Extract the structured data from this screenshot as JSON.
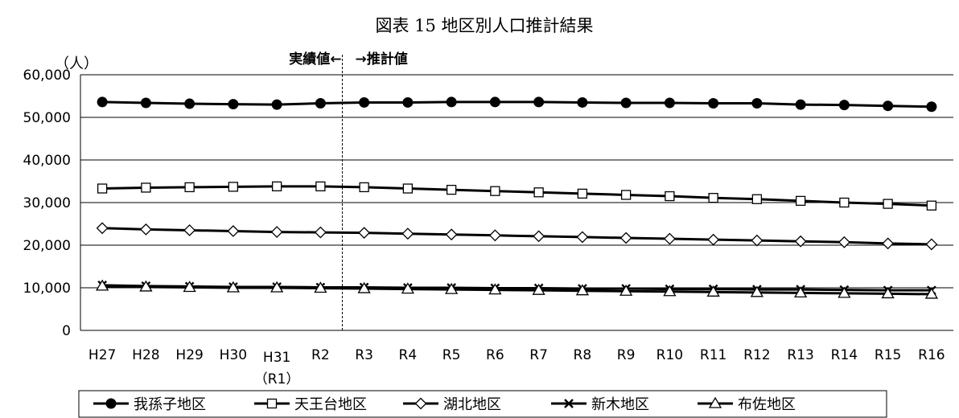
{
  "chart_data": {
    "type": "line",
    "title": "図表 15 地区別人口推計結果",
    "ylabel": "（人）",
    "xlabel": "",
    "ylim": [
      0,
      60000
    ],
    "yticks": [
      "0",
      "10,000",
      "20,000",
      "30,000",
      "40,000",
      "50,000",
      "60,000"
    ],
    "categories": [
      "H27",
      "H28",
      "H29",
      "H30",
      "H31",
      "R2",
      "R3",
      "R4",
      "R5",
      "R6",
      "R7",
      "R8",
      "R9",
      "R10",
      "R11",
      "R12",
      "R13",
      "R14",
      "R15",
      "R16"
    ],
    "category_sublabels": {
      "H31": "（R1）"
    },
    "annotation": {
      "text": "実績値←　→推計値",
      "between": [
        "R2",
        "R3"
      ]
    },
    "grid": true,
    "legend_position": "bottom",
    "series": [
      {
        "name": "我孫子地区",
        "marker": "filled-circle",
        "color": "#000000",
        "values": [
          53600,
          53400,
          53200,
          53100,
          53000,
          53300,
          53500,
          53500,
          53600,
          53600,
          53600,
          53500,
          53400,
          53400,
          53300,
          53300,
          53000,
          52900,
          52700,
          52500
        ]
      },
      {
        "name": "天王台地区",
        "marker": "open-square",
        "color": "#000000",
        "values": [
          33300,
          33500,
          33600,
          33700,
          33800,
          33800,
          33600,
          33300,
          33000,
          32700,
          32400,
          32100,
          31800,
          31500,
          31100,
          30800,
          30400,
          30000,
          29700,
          29300
        ]
      },
      {
        "name": "湖北地区",
        "marker": "open-diamond",
        "color": "#000000",
        "values": [
          24000,
          23700,
          23500,
          23300,
          23100,
          23000,
          22900,
          22700,
          22500,
          22300,
          22100,
          21900,
          21700,
          21500,
          21300,
          21100,
          20900,
          20700,
          20400,
          20200
        ]
      },
      {
        "name": "新木地区",
        "marker": "x",
        "color": "#000000",
        "values": [
          10600,
          10400,
          10300,
          10200,
          10200,
          10100,
          10100,
          10000,
          10000,
          9900,
          9900,
          9800,
          9800,
          9700,
          9700,
          9600,
          9600,
          9500,
          9400,
          9400
        ]
      },
      {
        "name": "布佐地区",
        "marker": "open-triangle",
        "color": "#000000",
        "values": [
          10400,
          10200,
          10100,
          10000,
          10000,
          9900,
          9800,
          9700,
          9600,
          9500,
          9400,
          9300,
          9200,
          9100,
          9000,
          8900,
          8800,
          8700,
          8600,
          8500
        ]
      }
    ]
  }
}
